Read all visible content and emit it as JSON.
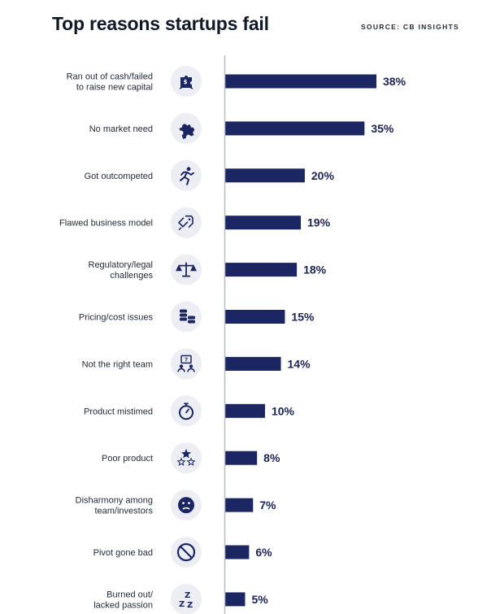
{
  "header": {
    "title": "Top reasons startups fail",
    "source": "SOURCE: CB INSIGHTS"
  },
  "colors": {
    "bar": "#1b2663",
    "axis": "#b8bcc6",
    "icon_circle": "#eceef4",
    "icon": "#1b2663"
  },
  "chart_data": {
    "type": "bar",
    "orientation": "horizontal",
    "title": "Top reasons startups fail",
    "source": "SOURCE: CB INSIGHTS",
    "value_suffix": "%",
    "xlim": [
      0,
      38
    ],
    "grid": false,
    "legend": "none",
    "categories": [
      [
        "Ran out of cash/failed",
        "to raise new capital"
      ],
      [
        "No market need"
      ],
      [
        "Got outcompeted"
      ],
      [
        "Flawed business model"
      ],
      [
        "Regulatory/legal",
        "challenges"
      ],
      [
        "Pricing/cost issues"
      ],
      [
        "Not the right team"
      ],
      [
        "Product mistimed"
      ],
      [
        "Poor product"
      ],
      [
        "Disharmony among",
        "team/investors"
      ],
      [
        "Pivot gone bad"
      ],
      [
        "Burned out/",
        "lacked passion"
      ]
    ],
    "icons": [
      "money-puzzle-icon",
      "puzzle-piece-icon",
      "running-person-icon",
      "broken-tag-icon",
      "scales-icon",
      "coin-stack-icon",
      "team-question-icon",
      "stopwatch-icon",
      "stars-icon",
      "sad-face-icon",
      "prohibited-icon",
      "sleep-zzz-icon"
    ],
    "values": [
      38,
      35,
      20,
      19,
      18,
      15,
      14,
      10,
      8,
      7,
      6,
      5
    ]
  }
}
